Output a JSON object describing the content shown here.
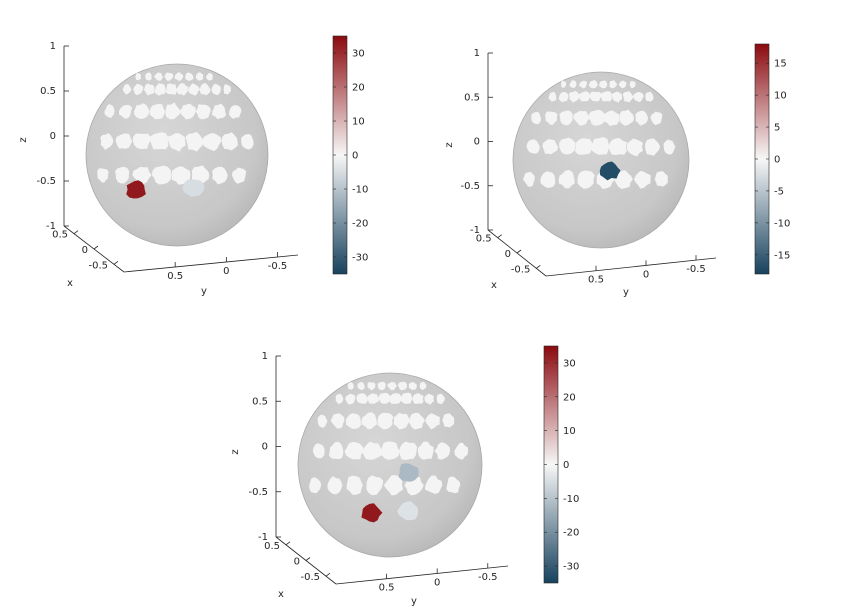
{
  "colors": {
    "sphere": "#c7c7c7",
    "sphere_edge": "#a9a9a9",
    "patch_neutral": "#f4f4f4",
    "axis": "#262626",
    "cmap_max": "#8b0a0f",
    "cmap_mid": "#f7f7f7",
    "cmap_min": "#17425e"
  },
  "chart_data": [
    {
      "type": "3d-sphere-surface",
      "axes": {
        "xlabel": "x",
        "ylabel": "y",
        "zlabel": "z",
        "x_ticks": [
          "0.5",
          "0",
          "-0.5"
        ],
        "y_ticks": [
          "0.5",
          "0",
          "-0.5"
        ],
        "z_ticks": [
          "1",
          "0.5",
          "0",
          "-0.5",
          "-1"
        ]
      },
      "colorbar": {
        "range": [
          -35,
          35
        ],
        "ticks": [
          30,
          20,
          10,
          0,
          -10,
          -20,
          -30
        ],
        "tick_labels": [
          "30",
          "20",
          "10",
          "0",
          "-10",
          "-20",
          "-30"
        ]
      },
      "highlighted_patches": [
        {
          "value": 33,
          "approx_yz": [
            0.45,
            -0.38
          ]
        },
        {
          "value": -5,
          "approx_yz": [
            -0.18,
            -0.36
          ]
        }
      ]
    },
    {
      "type": "3d-sphere-surface",
      "axes": {
        "xlabel": "x",
        "ylabel": "y",
        "zlabel": "z",
        "x_ticks": [
          "0.5",
          "0",
          "-0.5"
        ],
        "y_ticks": [
          "0.5",
          "0",
          "-0.5"
        ],
        "z_ticks": [
          "1",
          "0.5",
          "0",
          "-0.5",
          "-1"
        ]
      },
      "colorbar": {
        "range": [
          -18,
          18
        ],
        "ticks": [
          15,
          10,
          5,
          0,
          -5,
          -10,
          -15
        ],
        "tick_labels": [
          "15",
          "10",
          "5",
          "0",
          "-5",
          "-10",
          "-15"
        ]
      },
      "highlighted_patches": [
        {
          "value": -17,
          "approx_yz": [
            -0.1,
            -0.12
          ]
        }
      ]
    },
    {
      "type": "3d-sphere-surface",
      "axes": {
        "xlabel": "x",
        "ylabel": "y",
        "zlabel": "z",
        "x_ticks": [
          "0.5",
          "0",
          "-0.5"
        ],
        "y_ticks": [
          "0.5",
          "0",
          "-0.5"
        ],
        "z_ticks": [
          "1",
          "0.5",
          "0",
          "-0.5",
          "-1"
        ]
      },
      "colorbar": {
        "range": [
          -35,
          35
        ],
        "ticks": [
          30,
          20,
          10,
          0,
          -10,
          -20,
          -30
        ],
        "tick_labels": [
          "30",
          "20",
          "10",
          "0",
          "-10",
          "-20",
          "-30"
        ]
      },
      "highlighted_patches": [
        {
          "value": 33,
          "approx_yz": [
            0.2,
            -0.52
          ]
        },
        {
          "value": -12,
          "approx_yz": [
            -0.2,
            -0.08
          ]
        },
        {
          "value": -4,
          "approx_yz": [
            -0.2,
            -0.5
          ]
        }
      ]
    }
  ]
}
